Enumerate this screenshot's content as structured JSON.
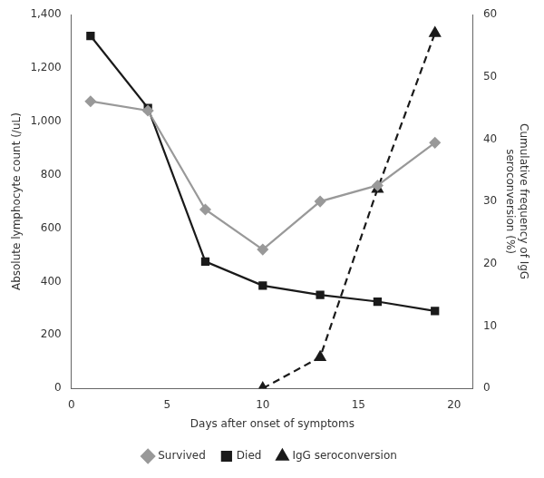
{
  "chart_data": {
    "type": "line",
    "x": [
      1,
      4,
      7,
      10,
      13,
      16,
      19
    ],
    "series": [
      {
        "name": "Survived",
        "color": "#999999",
        "marker": "diamond",
        "line_style": "solid",
        "values": [
          1075,
          1040,
          670,
          520,
          700,
          760,
          920
        ]
      },
      {
        "name": "Died",
        "color": "#1a1a1a",
        "marker": "square",
        "line_style": "solid",
        "values": [
          1320,
          1050,
          475,
          385,
          350,
          325,
          290
        ]
      },
      {
        "name": "IgG seroconversion",
        "color": "#1a1a1a",
        "marker": "triangle",
        "line_style": "dashed",
        "axis": "y2",
        "values": [
          null,
          null,
          null,
          0,
          5,
          32,
          57
        ]
      }
    ],
    "xlabel": "Days after onset of symptoms",
    "ylabel": "Absolute lymphocyte count (/uL)",
    "y2label": "Cumulative frequency of IgG\nseroconversion (%)",
    "xlim": [
      0,
      21
    ],
    "xticks": [
      0,
      5,
      10,
      15,
      20
    ],
    "ylim": [
      0,
      1400
    ],
    "yticks": [
      0,
      200,
      400,
      600,
      800,
      {
        "value": 1000,
        "label": "1,000"
      },
      {
        "value": 1200,
        "label": "1,200"
      },
      {
        "value": 1400,
        "label": "1,400"
      }
    ],
    "y2lim": [
      0,
      60
    ],
    "y2ticks": [
      0,
      10,
      20,
      30,
      40,
      50,
      60
    ],
    "grid": false,
    "legend": "bottom"
  }
}
